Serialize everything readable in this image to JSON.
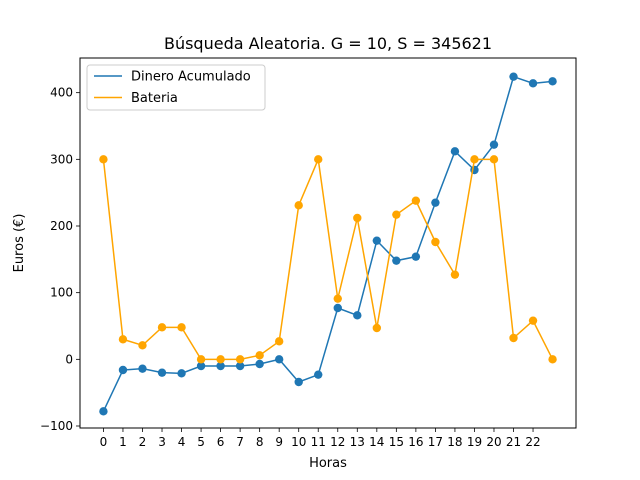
{
  "chart_data": {
    "type": "line",
    "title": "Búsqueda Aleatoria. G = 10, S = 345621",
    "xlabel": "Horas",
    "ylabel": "Euros (€)",
    "x": [
      0,
      1,
      2,
      3,
      4,
      5,
      6,
      7,
      8,
      9,
      10,
      11,
      12,
      13,
      14,
      15,
      16,
      17,
      18,
      19,
      20,
      21,
      22,
      23
    ],
    "xtick_labels": [
      "0",
      "1",
      "2",
      "3",
      "4",
      "5",
      "6",
      "7",
      "8",
      "9",
      "10",
      "11",
      "12",
      "13",
      "14",
      "15",
      "16",
      "17",
      "18",
      "19",
      "20",
      "21",
      "22"
    ],
    "ytick_labels": [
      "−100",
      "0",
      "100",
      "200",
      "300",
      "400"
    ],
    "yticks": [
      -100,
      0,
      100,
      200,
      300,
      400
    ],
    "xlim": [
      -1.2,
      24.2
    ],
    "ylim": [
      -103,
      452
    ],
    "grid": false,
    "legend_position": "upper-left",
    "series": [
      {
        "name": "Dinero Acumulado",
        "color": "#1f77b4",
        "values": [
          -78,
          -16,
          -14,
          -20,
          -21,
          -10,
          -10,
          -10,
          -7,
          0,
          -34,
          -23,
          77,
          66,
          178,
          148,
          154,
          235,
          312,
          284,
          322,
          424,
          414,
          417
        ]
      },
      {
        "name": "Bateria",
        "color": "#ffa500",
        "values": [
          300,
          30,
          21,
          48,
          48,
          0,
          0,
          0,
          6,
          27,
          231,
          300,
          91,
          212,
          47,
          217,
          238,
          176,
          127,
          300,
          300,
          32,
          58,
          0
        ]
      }
    ]
  }
}
